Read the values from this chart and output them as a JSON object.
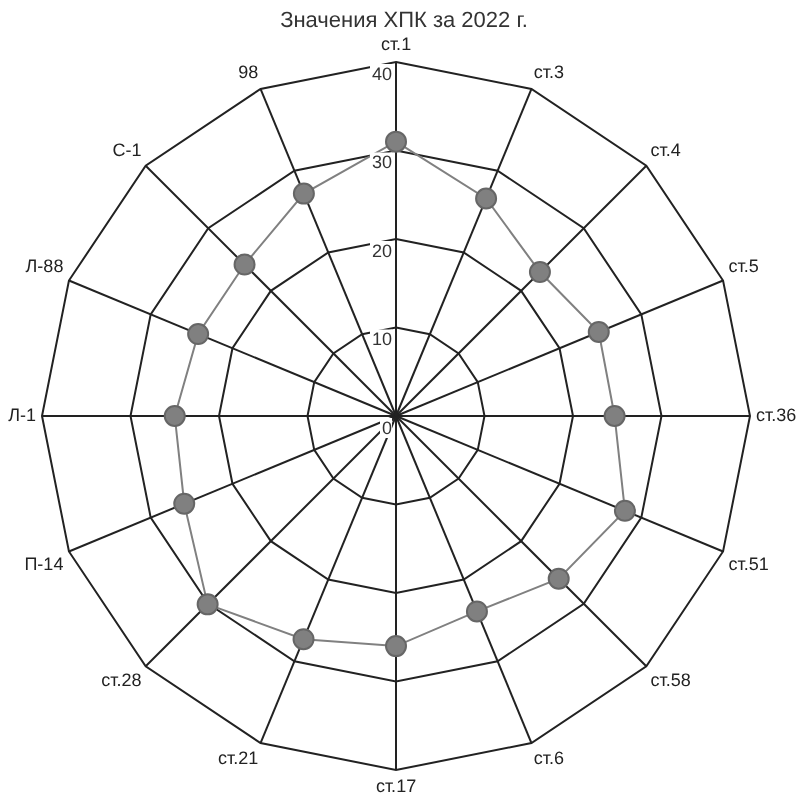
{
  "chart_data": {
    "type": "radar",
    "title": "Значения ХПК за 2022 г.",
    "categories": [
      "ст.1",
      "ст.3",
      "ст.4",
      "ст.5",
      "ст.36",
      "ст.51",
      "ст.58",
      "ст.6",
      "ст.17",
      "ст.21",
      "ст.28",
      "П-14",
      "Л-1",
      "Л-88",
      "С-1",
      "98"
    ],
    "series": [
      {
        "color": "#808080",
        "values": [
          31,
          26.6,
          23,
          24.8,
          24.7,
          28,
          26,
          23.9,
          26,
          27.3,
          30.1,
          25.9,
          25,
          24.2,
          24.2,
          27.2
        ]
      }
    ],
    "ylim": [
      0,
      40
    ],
    "yticks": [
      0,
      10,
      20,
      30,
      40
    ],
    "grid": true,
    "legend": false,
    "marker": "circle"
  }
}
